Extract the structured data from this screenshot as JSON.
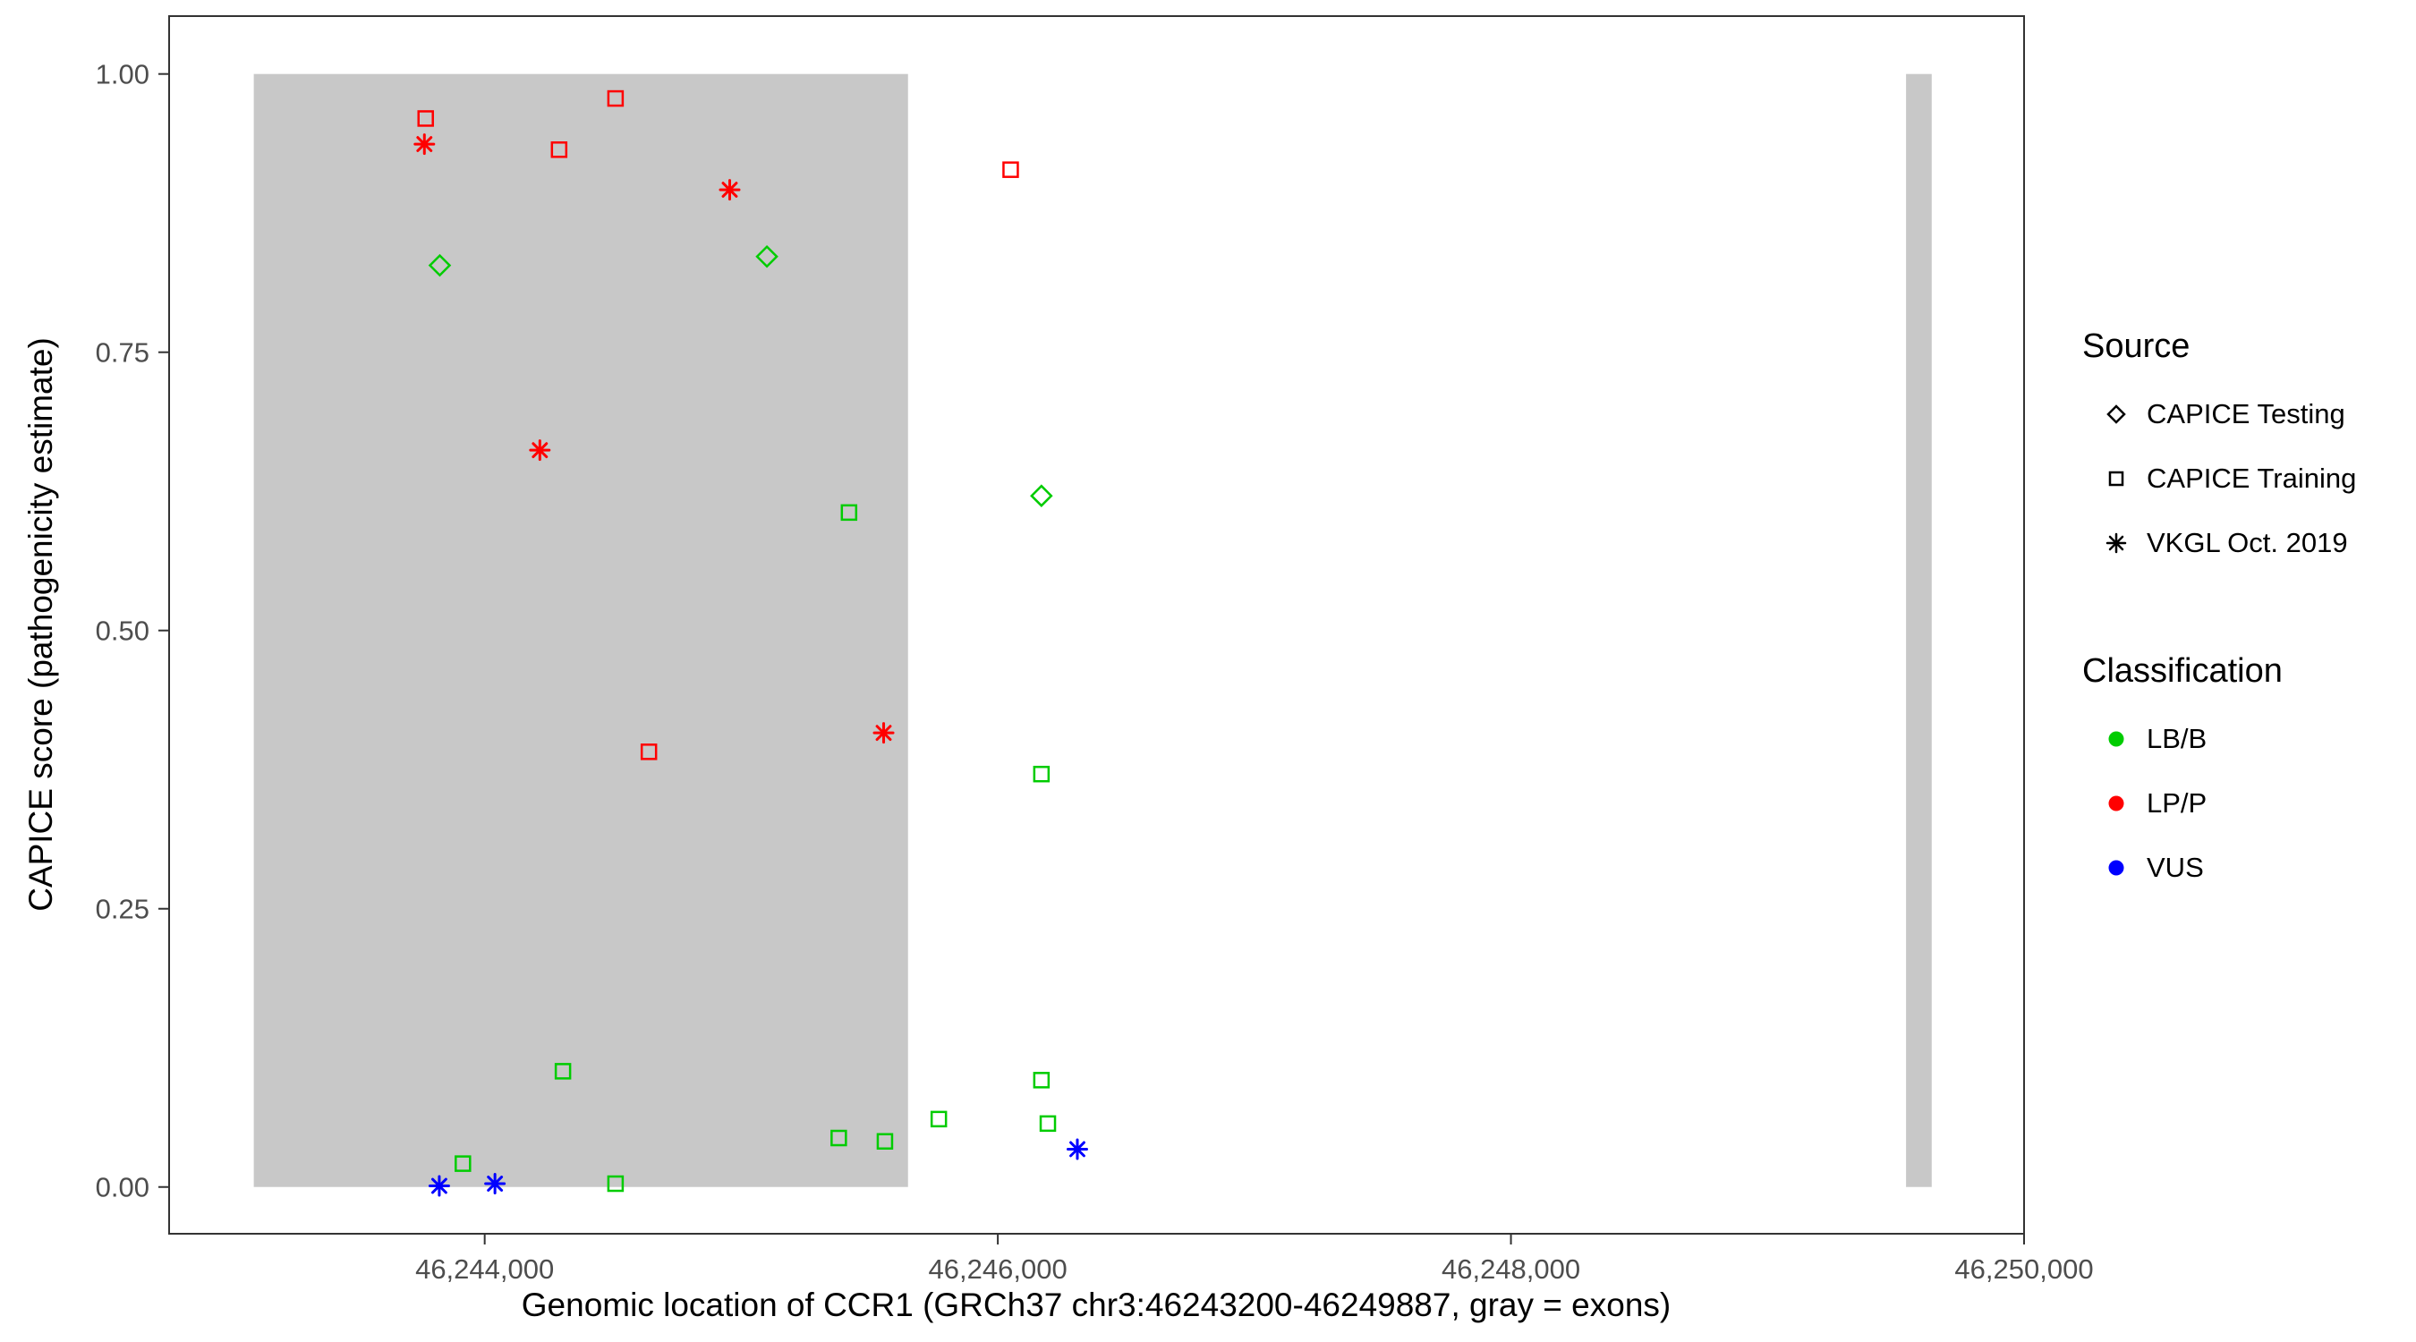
{
  "colors": {
    "background": "#FFFFFF",
    "panel_border": "#333333",
    "tick": "#333333",
    "tick_label": "#4D4D4D",
    "exon": "#C8C8C8",
    "legend_marker": "#000000",
    "classification": {
      "LB/B": "#00CC00",
      "LP/P": "#FF0000",
      "VUS": "#0000FF"
    }
  },
  "legend": {
    "source": {
      "title": "Source",
      "items": [
        {
          "label": "CAPICE Testing",
          "shape": "diamond"
        },
        {
          "label": "CAPICE Training",
          "shape": "square"
        },
        {
          "label": "VKGL Oct. 2019",
          "shape": "asterisk"
        }
      ]
    },
    "classification": {
      "title": "Classification",
      "items": [
        {
          "label": "LB/B"
        },
        {
          "label": "LP/P"
        },
        {
          "label": "VUS"
        }
      ]
    }
  },
  "chart_data": {
    "type": "scatter",
    "xlabel": "Genomic location of CCR1 (GRCh37 chr3:46243200-46249887, gray = exons)",
    "ylabel": "CAPICE score (pathogenicity estimate)",
    "x_range": [
      46242770,
      46250000
    ],
    "y_range": [
      -0.042,
      1.052
    ],
    "grid": "off",
    "legend_position": "right",
    "x_ticks": [
      {
        "value": 46244000,
        "label": "46,244,000"
      },
      {
        "value": 46246000,
        "label": "46,246,000"
      },
      {
        "value": 46248000,
        "label": "46,248,000"
      },
      {
        "value": 46250000,
        "label": "46,250,000"
      }
    ],
    "y_ticks": [
      {
        "value": 0.0,
        "label": "0.00"
      },
      {
        "value": 0.25,
        "label": "0.25"
      },
      {
        "value": 0.5,
        "label": "0.50"
      },
      {
        "value": 0.75,
        "label": "0.75"
      },
      {
        "value": 1.0,
        "label": "1.00"
      }
    ],
    "exons": [
      {
        "start": 46243100,
        "end": 46245650,
        "ymin": 0.0,
        "ymax": 1.0
      },
      {
        "start": 46249540,
        "end": 46249640,
        "ymin": 0.0,
        "ymax": 1.0
      }
    ],
    "series": [
      {
        "name": "LP/P - CAPICE Training",
        "classification": "LP/P",
        "source": "CAPICE Training",
        "shape": "square",
        "points": [
          [
            46243770,
            0.96
          ],
          [
            46244290,
            0.932
          ],
          [
            46244510,
            0.978
          ],
          [
            46246050,
            0.914
          ],
          [
            46244640,
            0.391
          ]
        ]
      },
      {
        "name": "LP/P - VKGL Oct. 2019",
        "classification": "LP/P",
        "source": "VKGL Oct. 2019",
        "shape": "asterisk",
        "points": [
          [
            46243765,
            0.937
          ],
          [
            46244955,
            0.896
          ],
          [
            46244215,
            0.662
          ],
          [
            46245555,
            0.408
          ]
        ]
      },
      {
        "name": "LB/B - CAPICE Testing",
        "classification": "LB/B",
        "source": "CAPICE Testing",
        "shape": "diamond",
        "points": [
          [
            46243825,
            0.828
          ],
          [
            46245100,
            0.836
          ],
          [
            46246170,
            0.621
          ]
        ]
      },
      {
        "name": "LB/B - CAPICE Training",
        "classification": "LB/B",
        "source": "CAPICE Training",
        "shape": "square",
        "points": [
          [
            46245420,
            0.606
          ],
          [
            46246170,
            0.371
          ],
          [
            46244305,
            0.104
          ],
          [
            46246170,
            0.096
          ],
          [
            46245770,
            0.061
          ],
          [
            46246195,
            0.057
          ],
          [
            46245380,
            0.044
          ],
          [
            46245560,
            0.041
          ],
          [
            46243915,
            0.021
          ],
          [
            46244510,
            0.003
          ]
        ]
      },
      {
        "name": "VUS - VKGL Oct. 2019",
        "classification": "VUS",
        "source": "VKGL Oct. 2019",
        "shape": "asterisk",
        "points": [
          [
            46243823,
            0.001
          ],
          [
            46244040,
            0.003
          ],
          [
            46246310,
            0.034
          ]
        ]
      }
    ]
  }
}
